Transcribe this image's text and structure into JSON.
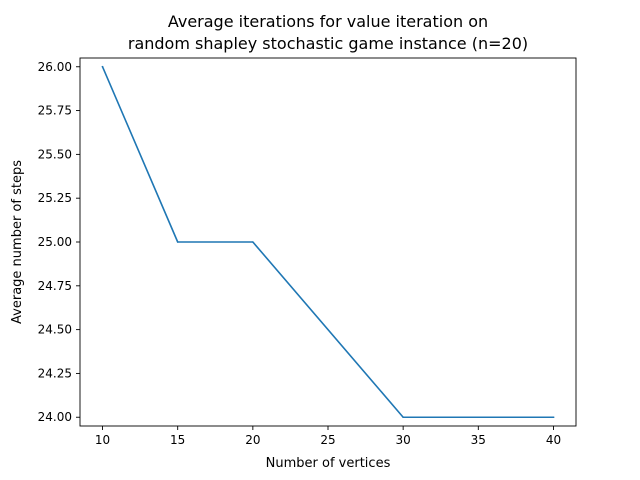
{
  "chart_data": {
    "type": "line",
    "title": "Average iterations for value iteration on\nrandom shapley stochastic game instance (n=20)",
    "xlabel": "Number of vertices",
    "ylabel": "Average number of steps",
    "xlim": [
      8.5,
      41.5
    ],
    "ylim": [
      23.95,
      26.05
    ],
    "xticks": [
      10,
      15,
      20,
      25,
      30,
      35,
      40
    ],
    "yticks": [
      24.0,
      24.25,
      24.5,
      24.75,
      25.0,
      25.25,
      25.5,
      25.75,
      26.0
    ],
    "xtick_labels": [
      "10",
      "15",
      "20",
      "25",
      "30",
      "35",
      "40"
    ],
    "ytick_labels": [
      "24.00",
      "24.25",
      "24.50",
      "24.75",
      "25.00",
      "25.25",
      "25.50",
      "25.75",
      "26.00"
    ],
    "grid": false,
    "legend": "none",
    "series": [
      {
        "color": "#1f77b4",
        "x": [
          10,
          15,
          20,
          30,
          40
        ],
        "y": [
          26.0,
          25.0,
          25.0,
          24.0,
          24.0
        ]
      }
    ]
  }
}
